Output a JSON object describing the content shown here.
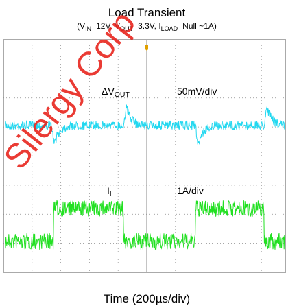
{
  "header": {
    "title": "Load Transient",
    "subtitle": [
      "(V",
      "IN",
      "=12V, V",
      "OUT",
      "=3.3V, I",
      "LOAD",
      "=Null ~1A)"
    ]
  },
  "traces": [
    {
      "label": [
        "ΔV",
        "OUT"
      ],
      "scale": "50mV/div"
    },
    {
      "label": [
        "I",
        "L"
      ],
      "scale": "1A/div"
    }
  ],
  "x_label": "Time (200µs/div)",
  "watermark": "Silergy Corp"
}
